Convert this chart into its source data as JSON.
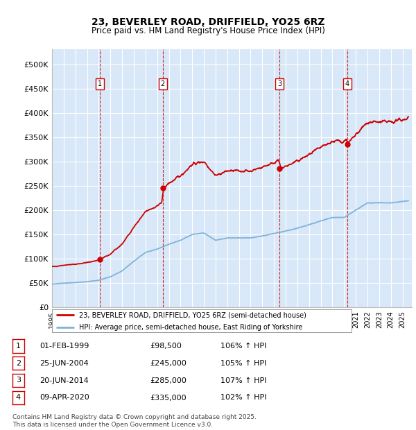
{
  "title1": "23, BEVERLEY ROAD, DRIFFIELD, YO25 6RZ",
  "title2": "Price paid vs. HM Land Registry's House Price Index (HPI)",
  "xlim_start": 1995.0,
  "xlim_end": 2025.8,
  "ylim_min": 0,
  "ylim_max": 520000,
  "yticks": [
    0,
    50000,
    100000,
    150000,
    200000,
    250000,
    300000,
    350000,
    400000,
    450000,
    500000
  ],
  "ytick_labels": [
    "£0",
    "£50K",
    "£100K",
    "£150K",
    "£200K",
    "£250K",
    "£300K",
    "£350K",
    "£400K",
    "£450K",
    "£500K"
  ],
  "background_color": "#ffffff",
  "plot_bg_color": "#d8e8f8",
  "grid_color": "#ffffff",
  "transactions": [
    {
      "num": 1,
      "date": "01-FEB-1999",
      "price": 98500,
      "pct": "106%",
      "year": 1999.08
    },
    {
      "num": 2,
      "date": "25-JUN-2004",
      "price": 245000,
      "pct": "105%",
      "year": 2004.48
    },
    {
      "num": 3,
      "date": "20-JUN-2014",
      "price": 285000,
      "pct": "107%",
      "year": 2014.47
    },
    {
      "num": 4,
      "date": "09-APR-2020",
      "price": 335000,
      "pct": "102%",
      "year": 2020.27
    }
  ],
  "legend_line1": "23, BEVERLEY ROAD, DRIFFIELD, YO25 6RZ (semi-detached house)",
  "legend_line2": "HPI: Average price, semi-detached house, East Riding of Yorkshire",
  "line_color_red": "#cc0000",
  "line_color_blue": "#7fb3d8",
  "footnote": "Contains HM Land Registry data © Crown copyright and database right 2025.\nThis data is licensed under the Open Government Licence v3.0."
}
